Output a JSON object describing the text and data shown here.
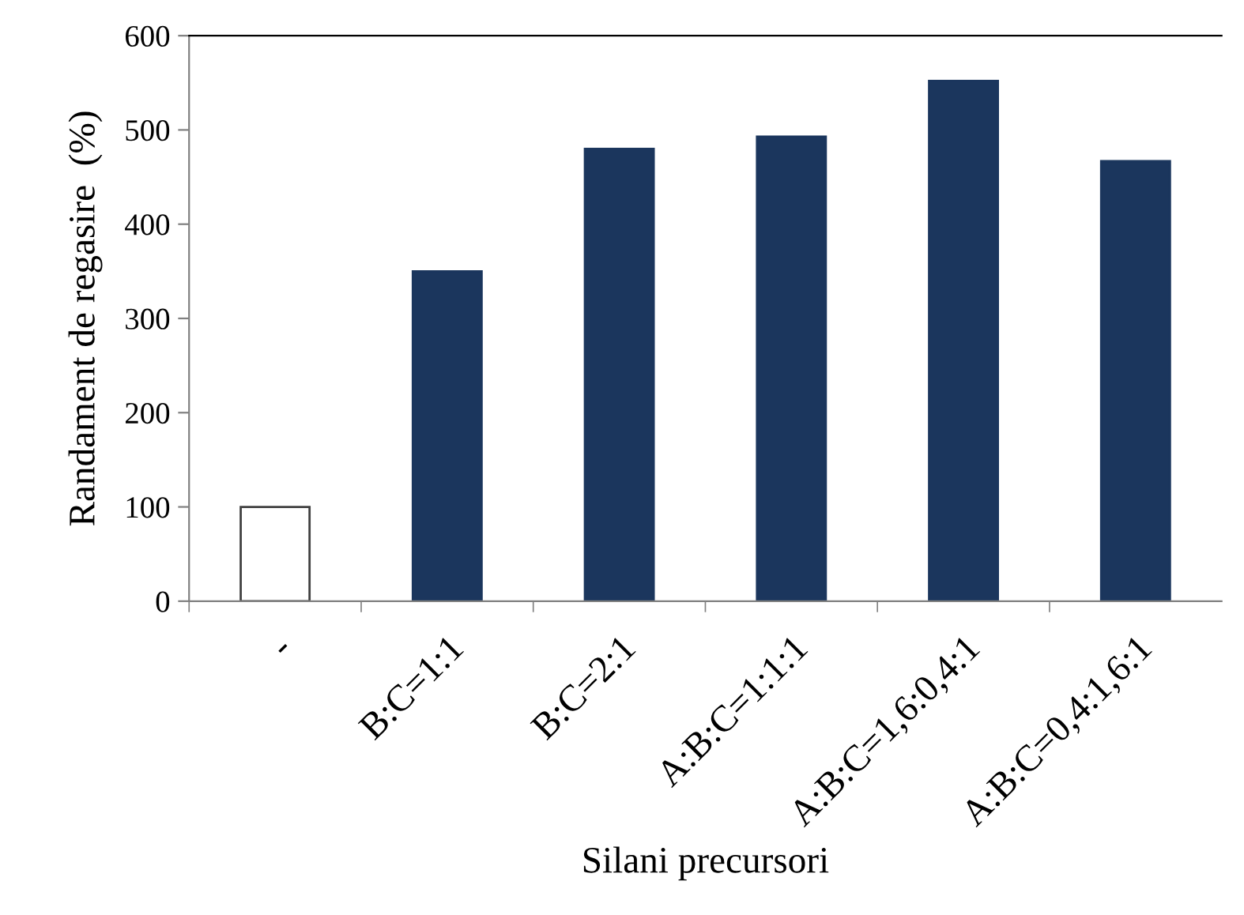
{
  "chart_data": {
    "type": "bar",
    "xlabel": "Silani precursori",
    "ylabel": "Randament de regasire  (%)",
    "categories": [
      "-",
      "B:C=1:1",
      "B:C=2:1",
      "A:B:C=1:1:1",
      "A:B:C=1,6:0,4:1",
      "A:B:C=0,4:1,6:1"
    ],
    "values": [
      100,
      350,
      480,
      493,
      552,
      467
    ],
    "colors": [
      "#ffffff",
      "#1b365d",
      "#1b365d",
      "#1b365d",
      "#1b365d",
      "#1b365d"
    ],
    "ylim": [
      0,
      600
    ],
    "yticks": [
      0,
      100,
      200,
      300,
      400,
      500,
      600
    ],
    "grid": false,
    "legend": false
  }
}
